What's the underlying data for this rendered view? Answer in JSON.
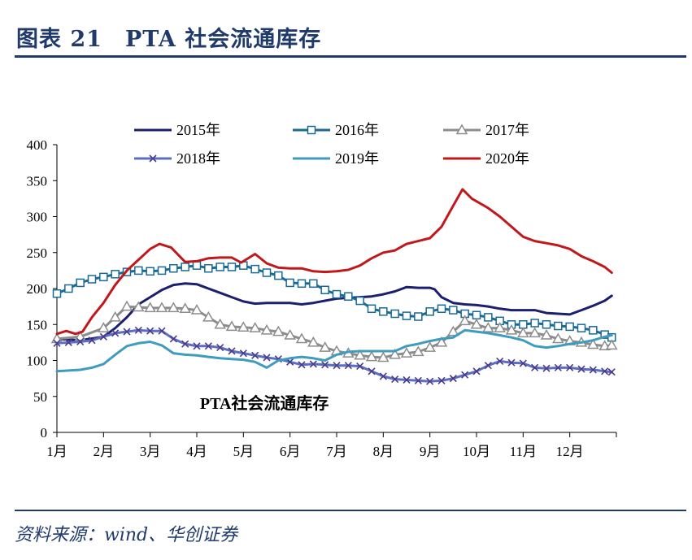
{
  "header": {
    "title": "图表 21　PTA 社会流通库存"
  },
  "footer": {
    "source": "资料来源：wind、华创证券"
  },
  "chart_data": {
    "type": "line",
    "title": "",
    "annotation": "PTA社会流通库存",
    "xlabel": "",
    "ylabel": "",
    "ylim": [
      0,
      400
    ],
    "yticks": [
      0,
      50,
      100,
      150,
      200,
      250,
      300,
      350,
      400
    ],
    "xlim": [
      1,
      13
    ],
    "xticks": [
      {
        "v": 1,
        "label": "1月"
      },
      {
        "v": 2,
        "label": "2月"
      },
      {
        "v": 3,
        "label": "3月"
      },
      {
        "v": 4,
        "label": "4月"
      },
      {
        "v": 5,
        "label": "5月"
      },
      {
        "v": 6,
        "label": "6月"
      },
      {
        "v": 7,
        "label": "7月"
      },
      {
        "v": 8,
        "label": "8月"
      },
      {
        "v": 9,
        "label": "9月"
      },
      {
        "v": 10,
        "label": "10月"
      },
      {
        "v": 11,
        "label": "11月"
      },
      {
        "v": 12,
        "label": "12月"
      }
    ],
    "grid": false,
    "legend_position": "top",
    "series": [
      {
        "name": "2015年",
        "color": "#1c1f6e",
        "marker": "none",
        "points": [
          [
            1.0,
            130
          ],
          [
            1.5,
            128
          ],
          [
            2.0,
            133
          ],
          [
            2.25,
            145
          ],
          [
            2.5,
            160
          ],
          [
            2.75,
            178
          ],
          [
            3.0,
            188
          ],
          [
            3.25,
            198
          ],
          [
            3.5,
            205
          ],
          [
            3.75,
            207
          ],
          [
            4.0,
            206
          ],
          [
            4.25,
            200
          ],
          [
            4.5,
            194
          ],
          [
            4.75,
            188
          ],
          [
            5.0,
            182
          ],
          [
            5.25,
            179
          ],
          [
            5.5,
            180
          ],
          [
            5.75,
            180
          ],
          [
            6.0,
            180
          ],
          [
            6.25,
            178
          ],
          [
            6.5,
            180
          ],
          [
            6.75,
            183
          ],
          [
            7.0,
            186
          ],
          [
            7.25,
            187
          ],
          [
            7.5,
            188
          ],
          [
            7.75,
            189
          ],
          [
            8.0,
            192
          ],
          [
            8.25,
            196
          ],
          [
            8.5,
            202
          ],
          [
            8.75,
            201
          ],
          [
            9.0,
            201
          ],
          [
            9.1,
            199
          ],
          [
            9.25,
            188
          ],
          [
            9.5,
            180
          ],
          [
            9.75,
            178
          ],
          [
            10.0,
            177
          ],
          [
            10.25,
            175
          ],
          [
            10.5,
            172
          ],
          [
            10.75,
            170
          ],
          [
            11.0,
            170
          ],
          [
            11.25,
            170
          ],
          [
            11.5,
            166
          ],
          [
            11.75,
            165
          ],
          [
            12.0,
            164
          ],
          [
            12.25,
            170
          ],
          [
            12.5,
            176
          ],
          [
            12.75,
            183
          ],
          [
            12.9,
            190
          ]
        ]
      },
      {
        "name": "2016年",
        "color": "#1a6a96",
        "marker": "square",
        "points": [
          [
            1.0,
            193
          ],
          [
            1.25,
            200
          ],
          [
            1.5,
            208
          ],
          [
            1.75,
            213
          ],
          [
            2.0,
            216
          ],
          [
            2.25,
            220
          ],
          [
            2.5,
            223
          ],
          [
            2.75,
            225
          ],
          [
            3.0,
            224
          ],
          [
            3.25,
            225
          ],
          [
            3.5,
            228
          ],
          [
            3.75,
            230
          ],
          [
            4.0,
            232
          ],
          [
            4.25,
            228
          ],
          [
            4.5,
            230
          ],
          [
            4.75,
            230
          ],
          [
            5.0,
            232
          ],
          [
            5.25,
            227
          ],
          [
            5.5,
            222
          ],
          [
            5.75,
            218
          ],
          [
            6.0,
            208
          ],
          [
            6.25,
            207
          ],
          [
            6.5,
            207
          ],
          [
            6.75,
            198
          ],
          [
            7.0,
            192
          ],
          [
            7.25,
            189
          ],
          [
            7.5,
            183
          ],
          [
            7.75,
            172
          ],
          [
            8.0,
            168
          ],
          [
            8.25,
            165
          ],
          [
            8.5,
            162
          ],
          [
            8.75,
            161
          ],
          [
            9.0,
            168
          ],
          [
            9.25,
            172
          ],
          [
            9.5,
            170
          ],
          [
            9.75,
            165
          ],
          [
            10.0,
            163
          ],
          [
            10.25,
            160
          ],
          [
            10.5,
            155
          ],
          [
            10.75,
            150
          ],
          [
            11.0,
            150
          ],
          [
            11.25,
            152
          ],
          [
            11.5,
            150
          ],
          [
            11.75,
            148
          ],
          [
            12.0,
            147
          ],
          [
            12.25,
            145
          ],
          [
            12.5,
            142
          ],
          [
            12.75,
            136
          ],
          [
            12.9,
            132
          ]
        ]
      },
      {
        "name": "2017年",
        "color": "#8c8c8c",
        "marker": "triangle",
        "points": [
          [
            1.0,
            130
          ],
          [
            1.5,
            133
          ],
          [
            2.0,
            145
          ],
          [
            2.25,
            160
          ],
          [
            2.5,
            175
          ],
          [
            2.75,
            174
          ],
          [
            3.0,
            173
          ],
          [
            3.25,
            173
          ],
          [
            3.5,
            173
          ],
          [
            3.75,
            172
          ],
          [
            4.0,
            170
          ],
          [
            4.25,
            160
          ],
          [
            4.5,
            150
          ],
          [
            4.75,
            147
          ],
          [
            5.0,
            146
          ],
          [
            5.25,
            145
          ],
          [
            5.5,
            142
          ],
          [
            5.75,
            140
          ],
          [
            6.0,
            135
          ],
          [
            6.25,
            130
          ],
          [
            6.5,
            125
          ],
          [
            6.75,
            118
          ],
          [
            7.0,
            113
          ],
          [
            7.25,
            110
          ],
          [
            7.5,
            107
          ],
          [
            7.75,
            105
          ],
          [
            8.0,
            104
          ],
          [
            8.25,
            108
          ],
          [
            8.5,
            110
          ],
          [
            8.75,
            112
          ],
          [
            9.0,
            118
          ],
          [
            9.25,
            125
          ],
          [
            9.5,
            140
          ],
          [
            9.75,
            155
          ],
          [
            10.0,
            150
          ],
          [
            10.25,
            145
          ],
          [
            10.5,
            145
          ],
          [
            10.75,
            142
          ],
          [
            11.0,
            138
          ],
          [
            11.25,
            138
          ],
          [
            11.5,
            135
          ],
          [
            11.75,
            130
          ],
          [
            12.0,
            127
          ],
          [
            12.25,
            125
          ],
          [
            12.5,
            122
          ],
          [
            12.75,
            120
          ],
          [
            12.9,
            121
          ]
        ]
      },
      {
        "name": "2018年",
        "color": "#5a6fc4",
        "marker": "x",
        "points": [
          [
            1.0,
            124
          ],
          [
            1.25,
            125
          ],
          [
            1.5,
            126
          ],
          [
            1.75,
            128
          ],
          [
            2.0,
            133
          ],
          [
            2.25,
            138
          ],
          [
            2.5,
            140
          ],
          [
            2.75,
            142
          ],
          [
            3.0,
            141
          ],
          [
            3.25,
            141
          ],
          [
            3.5,
            130
          ],
          [
            3.75,
            123
          ],
          [
            4.0,
            120
          ],
          [
            4.25,
            120
          ],
          [
            4.5,
            118
          ],
          [
            4.75,
            113
          ],
          [
            5.0,
            110
          ],
          [
            5.25,
            107
          ],
          [
            5.5,
            104
          ],
          [
            5.75,
            102
          ],
          [
            6.0,
            98
          ],
          [
            6.25,
            94
          ],
          [
            6.5,
            95
          ],
          [
            6.75,
            94
          ],
          [
            7.0,
            93
          ],
          [
            7.25,
            93
          ],
          [
            7.5,
            92
          ],
          [
            7.75,
            85
          ],
          [
            8.0,
            78
          ],
          [
            8.25,
            74
          ],
          [
            8.5,
            73
          ],
          [
            8.75,
            72
          ],
          [
            9.0,
            71
          ],
          [
            9.25,
            72
          ],
          [
            9.5,
            75
          ],
          [
            9.75,
            80
          ],
          [
            10.0,
            85
          ],
          [
            10.25,
            93
          ],
          [
            10.5,
            99
          ],
          [
            10.75,
            97
          ],
          [
            11.0,
            96
          ],
          [
            11.25,
            90
          ],
          [
            11.5,
            89
          ],
          [
            11.75,
            90
          ],
          [
            12.0,
            90
          ],
          [
            12.25,
            88
          ],
          [
            12.5,
            87
          ],
          [
            12.75,
            85
          ],
          [
            12.9,
            84
          ]
        ]
      },
      {
        "name": "2019年",
        "color": "#3f9bbf",
        "marker": "none",
        "points": [
          [
            1.0,
            85
          ],
          [
            1.25,
            86
          ],
          [
            1.5,
            87
          ],
          [
            1.75,
            90
          ],
          [
            2.0,
            95
          ],
          [
            2.25,
            108
          ],
          [
            2.5,
            120
          ],
          [
            2.75,
            124
          ],
          [
            3.0,
            126
          ],
          [
            3.25,
            121
          ],
          [
            3.5,
            110
          ],
          [
            3.75,
            108
          ],
          [
            4.0,
            107
          ],
          [
            4.25,
            105
          ],
          [
            4.5,
            103
          ],
          [
            4.75,
            102
          ],
          [
            5.0,
            101
          ],
          [
            5.25,
            98
          ],
          [
            5.5,
            90
          ],
          [
            5.75,
            100
          ],
          [
            6.0,
            103
          ],
          [
            6.25,
            105
          ],
          [
            6.5,
            103
          ],
          [
            6.75,
            100
          ],
          [
            7.0,
            108
          ],
          [
            7.25,
            112
          ],
          [
            7.5,
            113
          ],
          [
            7.75,
            113
          ],
          [
            8.0,
            113
          ],
          [
            8.25,
            113
          ],
          [
            8.5,
            120
          ],
          [
            8.75,
            123
          ],
          [
            9.0,
            127
          ],
          [
            9.25,
            130
          ],
          [
            9.5,
            132
          ],
          [
            9.75,
            142
          ],
          [
            10.0,
            140
          ],
          [
            10.25,
            138
          ],
          [
            10.5,
            135
          ],
          [
            10.75,
            132
          ],
          [
            11.0,
            128
          ],
          [
            11.25,
            120
          ],
          [
            11.5,
            118
          ],
          [
            11.75,
            120
          ],
          [
            12.0,
            123
          ],
          [
            12.25,
            125
          ],
          [
            12.5,
            128
          ],
          [
            12.75,
            133
          ],
          [
            12.9,
            135
          ]
        ]
      },
      {
        "name": "2020年",
        "color": "#c0181b",
        "marker": "none",
        "points": [
          [
            1.0,
            137
          ],
          [
            1.2,
            141
          ],
          [
            1.4,
            137
          ],
          [
            1.55,
            140
          ],
          [
            1.75,
            160
          ],
          [
            2.0,
            180
          ],
          [
            2.25,
            205
          ],
          [
            2.5,
            225
          ],
          [
            2.75,
            240
          ],
          [
            3.0,
            255
          ],
          [
            3.2,
            262
          ],
          [
            3.45,
            257
          ],
          [
            3.75,
            237
          ],
          [
            4.0,
            238
          ],
          [
            4.25,
            242
          ],
          [
            4.5,
            243
          ],
          [
            4.75,
            243
          ],
          [
            4.95,
            236
          ],
          [
            5.25,
            248
          ],
          [
            5.5,
            235
          ],
          [
            5.75,
            229
          ],
          [
            6.0,
            228
          ],
          [
            6.25,
            228
          ],
          [
            6.5,
            224
          ],
          [
            6.75,
            223
          ],
          [
            7.0,
            224
          ],
          [
            7.25,
            226
          ],
          [
            7.5,
            232
          ],
          [
            7.75,
            242
          ],
          [
            8.0,
            250
          ],
          [
            8.25,
            253
          ],
          [
            8.5,
            262
          ],
          [
            8.75,
            266
          ],
          [
            9.0,
            270
          ],
          [
            9.25,
            286
          ],
          [
            9.5,
            315
          ],
          [
            9.7,
            338
          ],
          [
            9.9,
            325
          ],
          [
            10.25,
            312
          ],
          [
            10.5,
            300
          ],
          [
            10.75,
            286
          ],
          [
            11.0,
            272
          ],
          [
            11.25,
            266
          ],
          [
            11.5,
            263
          ],
          [
            11.75,
            260
          ],
          [
            12.0,
            255
          ],
          [
            12.25,
            245
          ],
          [
            12.5,
            238
          ],
          [
            12.75,
            230
          ],
          [
            12.9,
            222
          ]
        ]
      }
    ]
  }
}
